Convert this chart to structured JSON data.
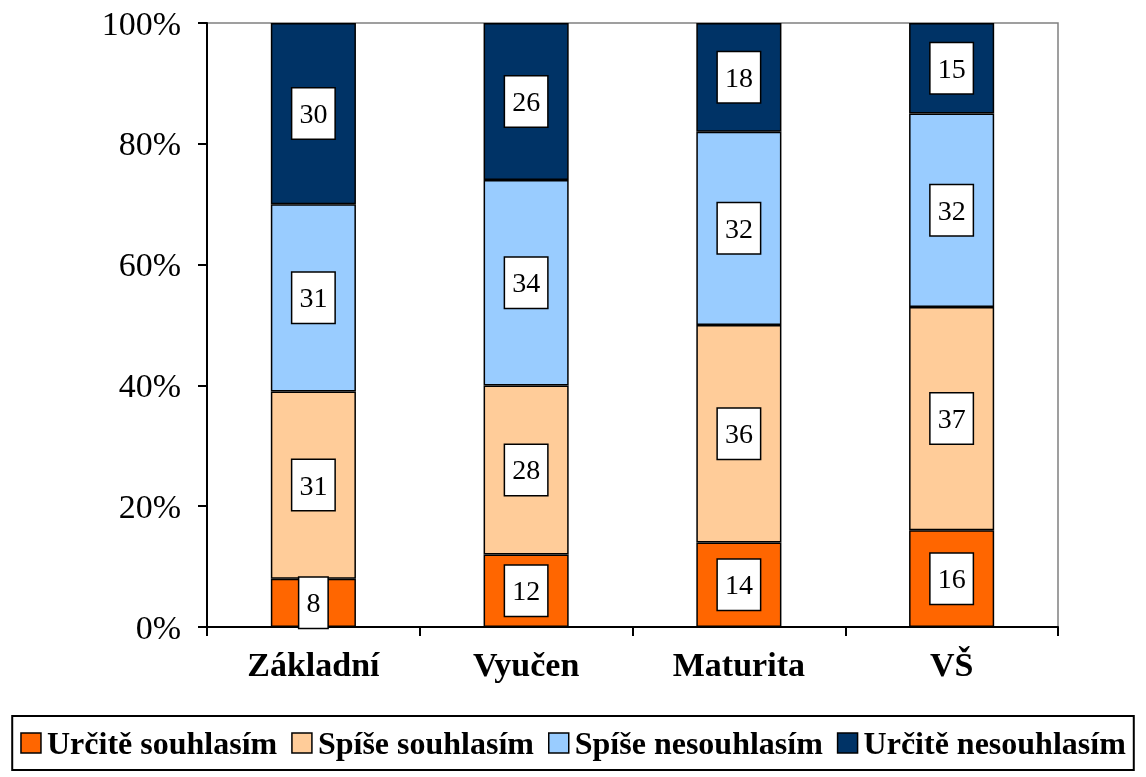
{
  "chart_data": {
    "type": "bar",
    "stacked": true,
    "categories": [
      "Základní",
      "Vyučen",
      "Maturita",
      "VŠ"
    ],
    "series": [
      {
        "name": "Určitě souhlasím",
        "color": "#ff6600",
        "values": [
          8,
          12,
          14,
          16
        ]
      },
      {
        "name": "Spíše souhlasím",
        "color": "#ffcc99",
        "values": [
          31,
          28,
          36,
          37
        ]
      },
      {
        "name": "Spíše nesouhlasím",
        "color": "#99ccff",
        "values": [
          31,
          34,
          32,
          32
        ]
      },
      {
        "name": "Určitě nesouhlasím",
        "color": "#003366",
        "values": [
          30,
          26,
          18,
          15
        ]
      }
    ],
    "ylim": [
      0,
      100
    ],
    "yticks": [
      {
        "value": 0,
        "label": "0%"
      },
      {
        "value": 20,
        "label": "20%"
      },
      {
        "value": 40,
        "label": "40%"
      },
      {
        "value": 60,
        "label": "60%"
      },
      {
        "value": 80,
        "label": "80%"
      },
      {
        "value": 100,
        "label": "100%"
      }
    ],
    "data_labels": true,
    "legend": "bottom"
  }
}
